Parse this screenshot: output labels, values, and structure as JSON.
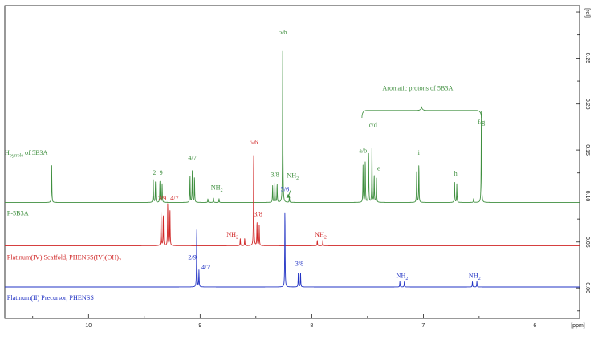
{
  "chart_data": {
    "type": "line",
    "title": "",
    "xlabel": "[ppm]",
    "ylabel": "[rel]",
    "x_reversed": true,
    "xlim": [
      10.75,
      5.6
    ],
    "ylim": [
      -0.033,
      0.307
    ],
    "x_ticks": [
      10,
      9,
      8,
      7,
      6
    ],
    "x_tick_labels": [
      "10",
      "9",
      "8",
      "7",
      "6"
    ],
    "y_ticks": [
      0.0,
      0.05,
      0.1,
      0.15,
      0.2,
      0.25
    ],
    "y_tick_labels": [
      "0.00",
      "0.05",
      "0.10",
      "0.15",
      "0.20",
      "0.25"
    ],
    "grid": false,
    "legend": "none",
    "series": [
      {
        "name": "P-5B3A",
        "color": "#3f8f3f",
        "baseline": 0.093,
        "linewidth": 0.004,
        "peaks": [
          [
            10.33,
            0.04
          ],
          [
            9.42,
            0.026
          ],
          [
            9.4,
            0.022
          ],
          [
            9.36,
            0.024
          ],
          [
            9.34,
            0.02
          ],
          [
            9.09,
            0.03
          ],
          [
            9.07,
            0.034
          ],
          [
            9.05,
            0.028
          ],
          [
            8.93,
            0.004
          ],
          [
            8.88,
            0.005
          ],
          [
            8.83,
            0.004
          ],
          [
            8.35,
            0.018
          ],
          [
            8.33,
            0.022
          ],
          [
            8.31,
            0.02
          ],
          [
            8.26,
            0.165
          ],
          [
            8.2,
            0.006
          ],
          [
            7.54,
            0.04
          ],
          [
            7.52,
            0.046
          ],
          [
            7.49,
            0.056
          ],
          [
            7.46,
            0.062
          ],
          [
            7.44,
            0.03
          ],
          [
            7.42,
            0.026
          ],
          [
            7.06,
            0.033
          ],
          [
            7.04,
            0.042
          ],
          [
            6.72,
            0.023
          ],
          [
            6.7,
            0.02
          ],
          [
            6.55,
            0.004
          ],
          [
            6.48,
            0.105
          ]
        ]
      },
      {
        "name": "Platinum(IV) Scaffold, PHENSS(IV)(OH)2",
        "color": "#d02626",
        "baseline": 0.046,
        "linewidth": 0.004,
        "peaks": [
          [
            9.35,
            0.038
          ],
          [
            9.33,
            0.034
          ],
          [
            9.29,
            0.048
          ],
          [
            9.27,
            0.04
          ],
          [
            8.64,
            0.008
          ],
          [
            8.6,
            0.008
          ],
          [
            8.52,
            0.104
          ],
          [
            8.49,
            0.026
          ],
          [
            8.47,
            0.022
          ],
          [
            7.95,
            0.006
          ],
          [
            7.9,
            0.006
          ]
        ]
      },
      {
        "name": "Platinum(II) Precursor, PHENSS",
        "color": "#2233c4",
        "baseline": 0.001,
        "linewidth": 0.004,
        "peaks": [
          [
            9.03,
            0.066
          ],
          [
            9.01,
            0.018
          ],
          [
            8.24,
            0.085
          ],
          [
            8.12,
            0.016
          ],
          [
            8.1,
            0.016
          ],
          [
            7.21,
            0.006
          ],
          [
            7.17,
            0.006
          ],
          [
            6.56,
            0.006
          ],
          [
            6.52,
            0.006
          ]
        ]
      }
    ],
    "trace_labels": [
      {
        "series": 0,
        "text": "P-5B3A",
        "ppm": 10.73,
        "rel": 0.079
      },
      {
        "series": 1,
        "text": "Platinum(IV)  Scaffold, PHENSS(IV)(OH)",
        "sub": "2",
        "ppm": 10.73,
        "rel": 0.031
      },
      {
        "series": 2,
        "text": "Platinum(II) Precursor, PHENSS",
        "ppm": 10.73,
        "rel": -0.013
      }
    ],
    "annotations": [
      {
        "series": 0,
        "text": "H",
        "sub": "pyrrole",
        "suffix": " of 5B3A",
        "ppm": 10.75,
        "rel": 0.145
      },
      {
        "series": 0,
        "text": "2",
        "ppm": 9.41,
        "rel": 0.123
      },
      {
        "series": 0,
        "text": "9",
        "ppm": 9.35,
        "rel": 0.123
      },
      {
        "series": 0,
        "text": "4/7",
        "ppm": 9.07,
        "rel": 0.139
      },
      {
        "series": 0,
        "text": "NH",
        "sub": "2",
        "ppm": 8.85,
        "rel": 0.107
      },
      {
        "series": 0,
        "text": "3/8",
        "ppm": 8.33,
        "rel": 0.121
      },
      {
        "series": 0,
        "text": "5/6",
        "ppm": 8.26,
        "rel": 0.276
      },
      {
        "series": 0,
        "text": "NH",
        "sub": "2",
        "ppm": 8.17,
        "rel": 0.12
      },
      {
        "series": 0,
        "text": "a/b",
        "ppm": 7.54,
        "rel": 0.147
      },
      {
        "series": 0,
        "text": "c/d",
        "ppm": 7.45,
        "rel": 0.175
      },
      {
        "series": 0,
        "text": "e",
        "ppm": 7.4,
        "rel": 0.128
      },
      {
        "series": 0,
        "text": "i",
        "ppm": 7.04,
        "rel": 0.145
      },
      {
        "series": 0,
        "text": "h",
        "ppm": 6.71,
        "rel": 0.122
      },
      {
        "series": 0,
        "text": "f/g",
        "ppm": 6.48,
        "rel": 0.178
      },
      {
        "series": 0,
        "text": "Aromatic protons of 5B3A",
        "ppm": 7.05,
        "rel": 0.215
      },
      {
        "series": 1,
        "text": "5/6",
        "ppm": 8.52,
        "rel": 0.156
      },
      {
        "series": 1,
        "text": "2/9",
        "ppm": 9.34,
        "rel": 0.095
      },
      {
        "series": 1,
        "text": "4/7",
        "ppm": 9.23,
        "rel": 0.095
      },
      {
        "series": 1,
        "text": "NH",
        "sub": "2",
        "ppm": 8.71,
        "rel": 0.056
      },
      {
        "series": 1,
        "text": "3/8",
        "ppm": 8.48,
        "rel": 0.078
      },
      {
        "series": 1,
        "text": "NH",
        "sub": "2",
        "ppm": 7.92,
        "rel": 0.056
      },
      {
        "series": 2,
        "text": "5/6",
        "ppm": 8.24,
        "rel": 0.105
      },
      {
        "series": 2,
        "text": "2/9",
        "ppm": 9.07,
        "rel": 0.031
      },
      {
        "series": 2,
        "text": "4/7",
        "ppm": 8.95,
        "rel": 0.02
      },
      {
        "series": 2,
        "text": "3/8",
        "ppm": 8.11,
        "rel": 0.024
      },
      {
        "series": 2,
        "text": "NH",
        "sub": "2",
        "ppm": 7.19,
        "rel": 0.011
      },
      {
        "series": 2,
        "text": "NH",
        "sub": "2",
        "ppm": 6.54,
        "rel": 0.011
      }
    ],
    "brackets": [
      {
        "series": 0,
        "from": 7.55,
        "to": 6.48,
        "rel": 0.193,
        "tick": 0.008
      }
    ],
    "arrows": [
      {
        "series": 0,
        "from_ppm": 8.19,
        "from_rel": 0.106,
        "to_ppm": 8.21,
        "to_rel": 0.099
      }
    ]
  }
}
